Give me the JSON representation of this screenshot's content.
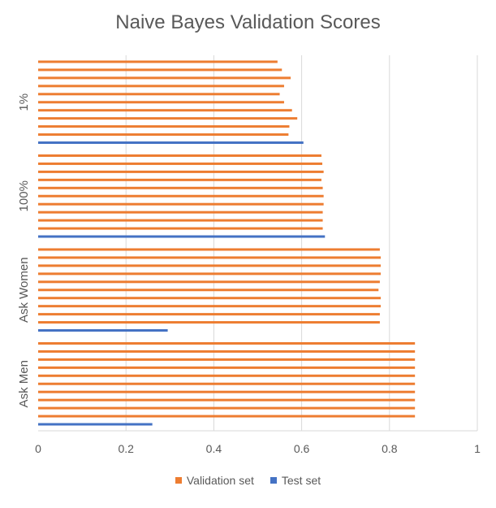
{
  "chart_data": {
    "type": "bar",
    "orientation": "horizontal",
    "title": "Naive Bayes Validation Scores",
    "xlabel": "",
    "ylabel": "",
    "xlim": [
      0,
      1
    ],
    "x_ticks": [
      "0",
      "0.2",
      "0.4",
      "0.6",
      "0.8",
      "1"
    ],
    "grid": true,
    "legend_position": "bottom",
    "categories": [
      "1%",
      "100%",
      "Ask Women",
      "Ask Men"
    ],
    "series": [
      {
        "name": "Validation set",
        "color": "#ED7D31",
        "values": [
          [
            0.545,
            0.555,
            0.575,
            0.56,
            0.55,
            0.56,
            0.578,
            0.59,
            0.572,
            0.57
          ],
          [
            0.645,
            0.647,
            0.65,
            0.645,
            0.648,
            0.65,
            0.65,
            0.648,
            0.648,
            0.648
          ],
          [
            0.778,
            0.78,
            0.78,
            0.78,
            0.778,
            0.775,
            0.78,
            0.78,
            0.778,
            0.778
          ],
          [
            0.858,
            0.858,
            0.858,
            0.858,
            0.858,
            0.858,
            0.858,
            0.858,
            0.858,
            0.858
          ]
        ]
      },
      {
        "name": "Test set",
        "color": "#4472C4",
        "values": [
          0.604,
          0.653,
          0.295,
          0.26
        ]
      }
    ]
  }
}
